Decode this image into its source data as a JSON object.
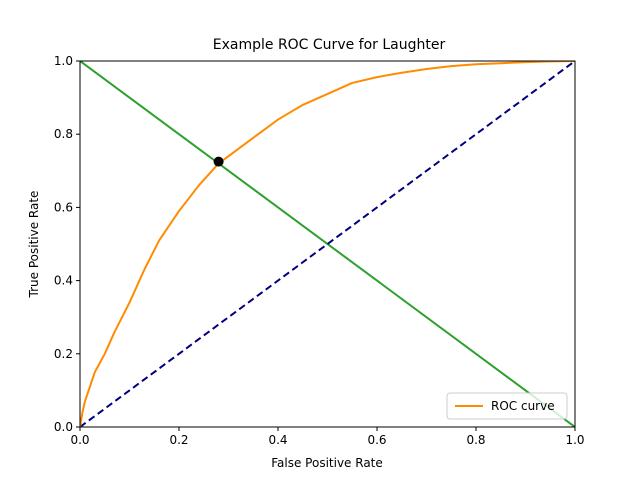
{
  "chart_data": {
    "type": "line",
    "title": "Example ROC Curve for Laughter",
    "xlabel": "False Positive Rate",
    "ylabel": "True Positive Rate",
    "xlim": [
      0,
      1
    ],
    "ylim": [
      0,
      1
    ],
    "x_ticks": [
      "0.0",
      "0.2",
      "0.4",
      "0.6",
      "0.8",
      "1.0"
    ],
    "y_ticks": [
      "0.0",
      "0.2",
      "0.4",
      "0.6",
      "0.8",
      "1.0"
    ],
    "grid": false,
    "legend": {
      "placement": "lower-right",
      "entries": [
        "ROC curve"
      ]
    },
    "series": [
      {
        "name": "ROC curve",
        "color": "#ff8c00",
        "style": "solid",
        "x": [
          0,
          0.005,
          0.01,
          0.02,
          0.03,
          0.05,
          0.07,
          0.1,
          0.13,
          0.16,
          0.2,
          0.24,
          0.28,
          0.3,
          0.35,
          0.4,
          0.45,
          0.5,
          0.55,
          0.6,
          0.65,
          0.7,
          0.75,
          0.8,
          0.85,
          0.9,
          0.95,
          1.0
        ],
        "y": [
          0,
          0.04,
          0.07,
          0.11,
          0.15,
          0.2,
          0.26,
          0.34,
          0.43,
          0.51,
          0.59,
          0.66,
          0.72,
          0.74,
          0.79,
          0.84,
          0.88,
          0.91,
          0.94,
          0.956,
          0.968,
          0.978,
          0.986,
          0.991,
          0.994,
          0.997,
          0.999,
          1.0
        ]
      },
      {
        "color": "#000080",
        "style": "dashed",
        "x": [
          0,
          1
        ],
        "y": [
          0,
          1
        ]
      },
      {
        "color": "#2ca02c",
        "style": "solid",
        "x": [
          0,
          1
        ],
        "y": [
          1,
          0
        ]
      }
    ],
    "points": [
      {
        "x": 0.28,
        "y": 0.725,
        "color": "#000000"
      }
    ]
  }
}
